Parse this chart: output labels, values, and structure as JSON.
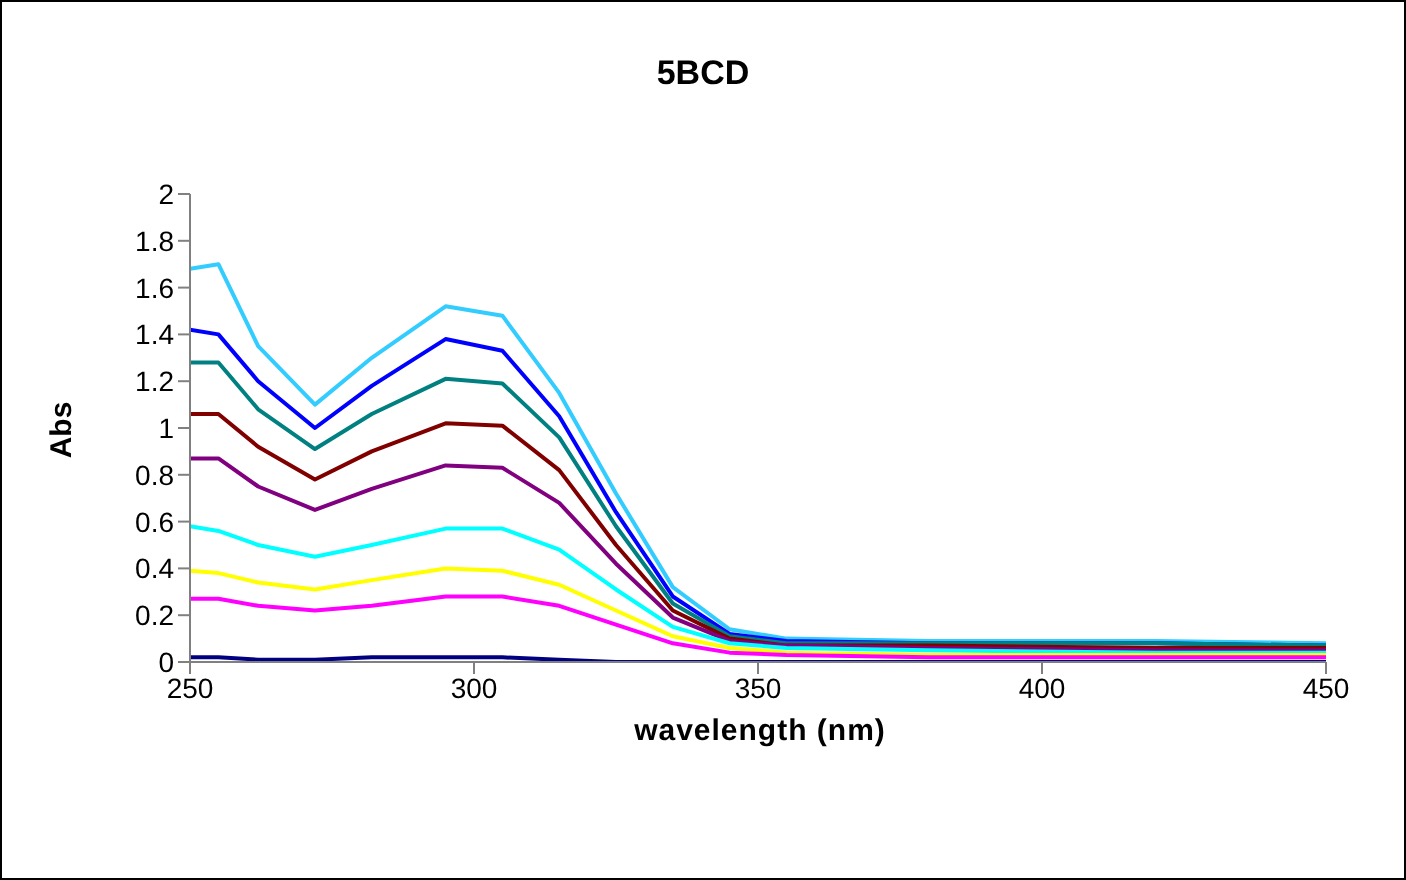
{
  "chart_data": {
    "type": "line",
    "title": "5BCD",
    "xlabel": "wavelength (nm)",
    "ylabel": "Abs",
    "x": [
      250,
      255,
      262,
      272,
      282,
      295,
      305,
      315,
      325,
      335,
      345,
      355,
      380,
      420,
      450
    ],
    "xlim": [
      250,
      450
    ],
    "xticks": [
      250,
      300,
      350,
      400,
      450
    ],
    "ylim": [
      0,
      2
    ],
    "yticks": [
      0,
      0.2,
      0.4,
      0.6,
      0.8,
      1,
      1.2,
      1.4,
      1.6,
      1.8,
      2
    ],
    "grid": false,
    "legend": false,
    "marker": "none",
    "line_style": "solid",
    "series": [
      {
        "color": "#33ccff",
        "values": [
          1.68,
          1.7,
          1.35,
          1.1,
          1.3,
          1.52,
          1.48,
          1.15,
          0.72,
          0.32,
          0.14,
          0.1,
          0.09,
          0.09,
          0.08
        ]
      },
      {
        "color": "#0000ff",
        "values": [
          1.42,
          1.4,
          1.2,
          1.0,
          1.18,
          1.38,
          1.33,
          1.05,
          0.64,
          0.28,
          0.12,
          0.09,
          0.08,
          0.08,
          0.07
        ]
      },
      {
        "color": "#008080",
        "values": [
          1.28,
          1.28,
          1.08,
          0.91,
          1.06,
          1.21,
          1.19,
          0.96,
          0.58,
          0.25,
          0.11,
          0.08,
          0.08,
          0.08,
          0.07
        ]
      },
      {
        "color": "#800000",
        "values": [
          1.06,
          1.06,
          0.92,
          0.78,
          0.9,
          1.02,
          1.01,
          0.82,
          0.5,
          0.22,
          0.1,
          0.07,
          0.07,
          0.06,
          0.06
        ]
      },
      {
        "color": "#800080",
        "values": [
          0.87,
          0.87,
          0.75,
          0.65,
          0.74,
          0.84,
          0.83,
          0.68,
          0.42,
          0.19,
          0.09,
          0.07,
          0.06,
          0.05,
          0.05
        ]
      },
      {
        "color": "#00ffff",
        "values": [
          0.58,
          0.56,
          0.5,
          0.45,
          0.5,
          0.57,
          0.57,
          0.48,
          0.31,
          0.15,
          0.08,
          0.06,
          0.05,
          0.04,
          0.04
        ]
      },
      {
        "color": "#ffff00",
        "values": [
          0.39,
          0.38,
          0.34,
          0.31,
          0.35,
          0.4,
          0.39,
          0.33,
          0.22,
          0.11,
          0.06,
          0.04,
          0.03,
          0.03,
          0.03
        ]
      },
      {
        "color": "#ff00ff",
        "values": [
          0.27,
          0.27,
          0.24,
          0.22,
          0.24,
          0.28,
          0.28,
          0.24,
          0.16,
          0.08,
          0.04,
          0.03,
          0.02,
          0.02,
          0.02
        ]
      },
      {
        "color": "#000080",
        "values": [
          0.02,
          0.02,
          0.01,
          0.01,
          0.02,
          0.02,
          0.02,
          0.01,
          0,
          0,
          0,
          0,
          0,
          0,
          0
        ]
      }
    ]
  }
}
